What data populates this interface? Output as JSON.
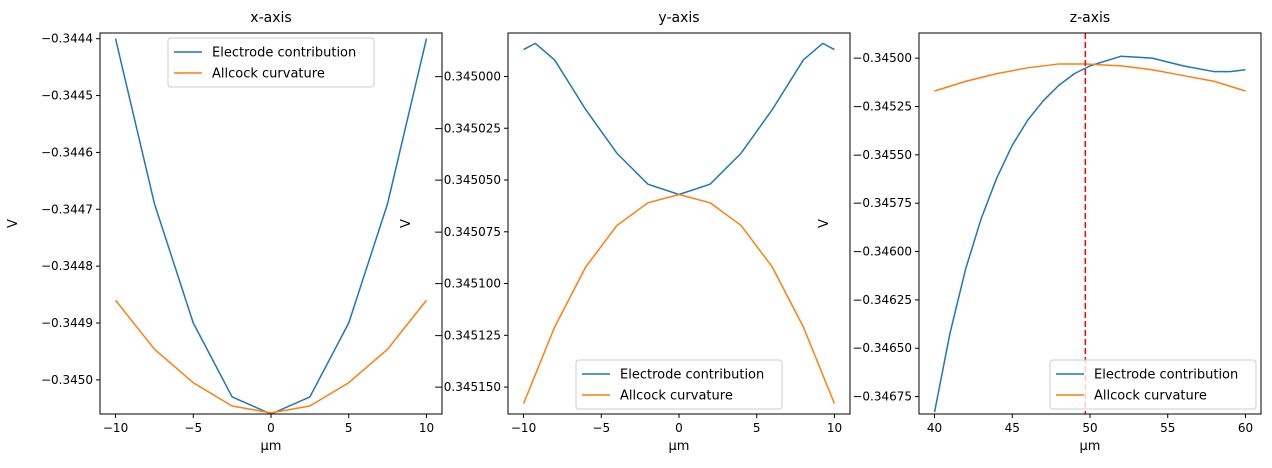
{
  "chart_data": [
    {
      "type": "line",
      "title": "x-axis",
      "xlabel": "µm",
      "ylabel": "V",
      "xlim": [
        -11,
        11
      ],
      "ylim": [
        -0.34506,
        -0.34439
      ],
      "xticks": [
        -10,
        -5,
        0,
        5,
        10
      ],
      "xtick_labels": [
        "−10",
        "−5",
        "0",
        "5",
        "10"
      ],
      "yticks": [
        -0.345,
        -0.3449,
        -0.3448,
        -0.3447,
        -0.3446,
        -0.3445,
        -0.3444
      ],
      "ytick_labels": [
        "−0.3450",
        "−0.3449",
        "−0.3448",
        "−0.3447",
        "−0.3446",
        "−0.3445",
        "−0.3444"
      ],
      "legend_position": "upper-center",
      "series": [
        {
          "name": "Electrode contribution",
          "color": "#1f77b4",
          "x": [
            -10,
            -7.5,
            -5,
            -2.5,
            0,
            2.5,
            5,
            7.5,
            10
          ],
          "y": [
            -0.3444,
            -0.34469,
            -0.3449,
            -0.34503,
            -0.34506,
            -0.34503,
            -0.3449,
            -0.34469,
            -0.3444
          ]
        },
        {
          "name": "Allcock curvature",
          "color": "#ff7f0e",
          "x": [
            -10,
            -7.5,
            -5,
            -2.5,
            0,
            2.5,
            5,
            7.5,
            10
          ],
          "y": [
            -0.34486,
            -0.344946,
            -0.345005,
            -0.345046,
            -0.345058,
            -0.345046,
            -0.345005,
            -0.344946,
            -0.34486
          ]
        }
      ]
    },
    {
      "type": "line",
      "title": "y-axis",
      "xlabel": "µm",
      "ylabel": "V",
      "xlim": [
        -11,
        11
      ],
      "ylim": [
        -0.345163,
        -0.344979
      ],
      "xticks": [
        -10,
        -5,
        0,
        5,
        10
      ],
      "xtick_labels": [
        "−10",
        "−5",
        "0",
        "5",
        "10"
      ],
      "yticks": [
        -0.34515,
        -0.345125,
        -0.3451,
        -0.345075,
        -0.34505,
        -0.345025,
        -0.345
      ],
      "ytick_labels": [
        "−0.345150",
        "−0.345125",
        "−0.345100",
        "−0.345075",
        "−0.345050",
        "−0.345025",
        "−0.345000"
      ],
      "legend_position": "lower-center",
      "series": [
        {
          "name": "Electrode contribution",
          "color": "#1f77b4",
          "x": [
            -10,
            -9.25,
            -8,
            -6,
            -4,
            -2,
            0,
            2,
            4,
            6,
            8,
            9.25,
            10
          ],
          "y": [
            -0.344987,
            -0.344984,
            -0.344992,
            -0.345016,
            -0.345037,
            -0.345052,
            -0.345057,
            -0.345052,
            -0.345037,
            -0.345016,
            -0.344992,
            -0.344984,
            -0.344987
          ]
        },
        {
          "name": "Allcock curvature",
          "color": "#ff7f0e",
          "x": [
            -10,
            -8,
            -6,
            -4,
            -2,
            0,
            2,
            4,
            6,
            8,
            10
          ],
          "y": [
            -0.345158,
            -0.345121,
            -0.345092,
            -0.345072,
            -0.345061,
            -0.345057,
            -0.345061,
            -0.345072,
            -0.345092,
            -0.345121,
            -0.345158
          ]
        }
      ]
    },
    {
      "type": "line",
      "title": "z-axis",
      "xlabel": "µm",
      "ylabel": "V",
      "xlim": [
        39,
        61
      ],
      "ylim": [
        -0.34684,
        -0.34487
      ],
      "xticks": [
        40,
        45,
        50,
        55,
        60
      ],
      "xtick_labels": [
        "40",
        "45",
        "50",
        "55",
        "60"
      ],
      "yticks": [
        -0.34675,
        -0.3465,
        -0.34625,
        -0.346,
        -0.34575,
        -0.3455,
        -0.34525,
        -0.345
      ],
      "ytick_labels": [
        "−0.34675",
        "−0.34650",
        "−0.34625",
        "−0.34600",
        "−0.34575",
        "−0.34550",
        "−0.34525",
        "−0.34500"
      ],
      "legend_position": "lower-right",
      "vline": {
        "x": 49.7,
        "color": "#ff0000",
        "style": "dashed"
      },
      "series": [
        {
          "name": "Electrode contribution",
          "color": "#1f77b4",
          "x": [
            40,
            41,
            42,
            43,
            44,
            45,
            46,
            47,
            48,
            49,
            50,
            52,
            54,
            56,
            58,
            59,
            60
          ],
          "y": [
            -0.34683,
            -0.34642,
            -0.34609,
            -0.34583,
            -0.34562,
            -0.34545,
            -0.34532,
            -0.34522,
            -0.34514,
            -0.34508,
            -0.34504,
            -0.34499,
            -0.345,
            -0.34504,
            -0.34507,
            -0.34507,
            -0.34506
          ]
        },
        {
          "name": "Allcock curvature",
          "color": "#ff7f0e",
          "x": [
            40,
            42,
            44,
            46,
            48,
            49.7,
            52,
            54,
            56,
            58,
            60
          ],
          "y": [
            -0.34517,
            -0.34512,
            -0.34508,
            -0.34505,
            -0.34503,
            -0.34503,
            -0.34504,
            -0.34506,
            -0.34509,
            -0.34512,
            -0.34517
          ]
        }
      ]
    }
  ]
}
